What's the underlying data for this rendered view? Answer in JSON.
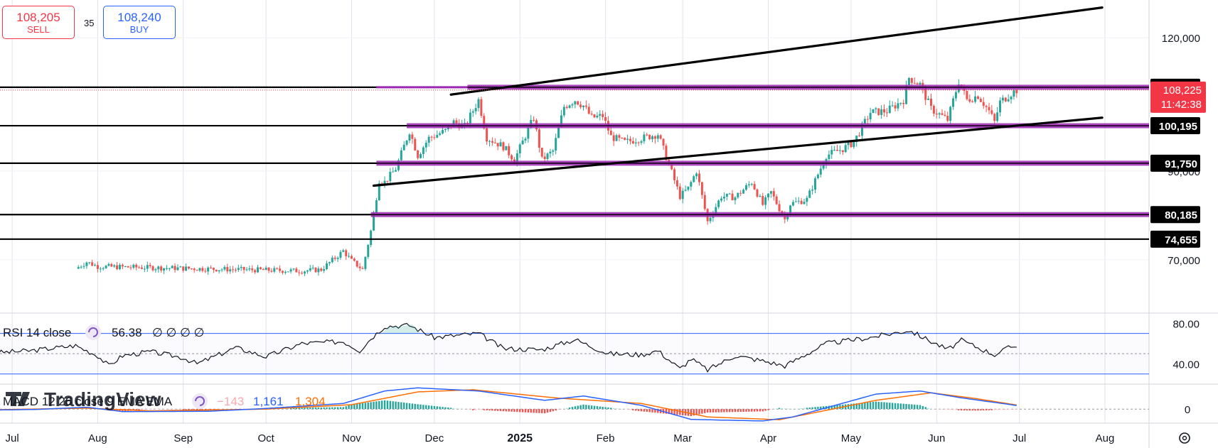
{
  "trade": {
    "sell_price": "108,205",
    "sell_label": "SELL",
    "spread": "35",
    "buy_price": "108,240",
    "buy_label": "BUY"
  },
  "indicators": {
    "rsi": {
      "label": "RSI 14 close",
      "value": "56.38",
      "placeholders": "∅ ∅ ∅ ∅",
      "levels": [
        70,
        30
      ],
      "axis_labels": [
        "80.00",
        "40.00"
      ]
    },
    "macd": {
      "label": "MACD 12 26 close 9 EMA EMA",
      "hist": "−143",
      "macd": "1,161",
      "signal": "1,304",
      "axis_label": "0"
    },
    "watermark": "TradingView"
  },
  "colors": {
    "up": "#26a69a",
    "down": "#ef5350",
    "level_line": "#9c27b0",
    "trend_line": "#000000",
    "rsi_band": "#2962ff",
    "macd_line": "#2962ff",
    "signal_line": "#ff6d00",
    "price_tag": "#f23645"
  },
  "icons": {
    "indicator_toggle": "refresh-cycle-icon",
    "settings": "gear-icon"
  },
  "chart_data": {
    "type": "candlestick",
    "instrument_price_axis": {
      "ylim": [
        58000,
        128500
      ],
      "tick_labels": [
        "120,000",
        "90,000",
        "70,000"
      ],
      "ticks": [
        120000,
        90000,
        70000
      ]
    },
    "x_tick_labels": [
      "Jul",
      "Aug",
      "Sep",
      "Oct",
      "Nov",
      "Dec",
      "2025",
      "Feb",
      "Mar",
      "Apr",
      "May",
      "Jun",
      "Jul",
      "Aug"
    ],
    "x_tick_dates": [
      "2024-07-01",
      "2024-08-01",
      "2024-09-01",
      "2024-10-01",
      "2024-11-01",
      "2024-12-01",
      "2025-01-01",
      "2025-02-01",
      "2025-03-01",
      "2025-04-01",
      "2025-05-01",
      "2025-06-01",
      "2025-07-01",
      "2025-08-01"
    ],
    "horizontal_levels": [
      108855,
      100195,
      91750,
      80185,
      74655
    ],
    "level_labels": [
      "108,855",
      "100,195",
      "91,750",
      "80,185",
      "74,655"
    ],
    "current_price": {
      "value": 108225,
      "label": "108,225",
      "countdown": "11:42:38"
    },
    "trend_lines": [
      {
        "from": [
          "2024-12-07",
          107200
        ],
        "to": [
          "2025-07-31",
          126800
        ]
      },
      {
        "from": [
          "2024-11-09",
          86700
        ],
        "to": [
          "2025-07-31",
          102000
        ]
      }
    ],
    "price_path": [
      [
        "2024-07-24",
        68000
      ],
      [
        "2024-07-28",
        69500
      ],
      [
        "2024-08-01",
        68500
      ],
      [
        "2024-10-14",
        67500
      ],
      [
        "2024-10-21",
        67800
      ],
      [
        "2024-10-29",
        72000
      ],
      [
        "2024-11-01",
        69800
      ],
      [
        "2024-11-05",
        67800
      ],
      [
        "2024-11-08",
        76500
      ],
      [
        "2024-11-11",
        88000
      ],
      [
        "2024-11-13",
        87500
      ],
      [
        "2024-11-17",
        90500
      ],
      [
        "2024-11-22",
        99000
      ],
      [
        "2024-11-25",
        93500
      ],
      [
        "2024-11-29",
        97400
      ],
      [
        "2024-12-05",
        99000
      ],
      [
        "2024-12-08",
        101000
      ],
      [
        "2024-12-12",
        100000
      ],
      [
        "2024-12-17",
        106000
      ],
      [
        "2024-12-20",
        97500
      ],
      [
        "2024-12-26",
        95500
      ],
      [
        "2024-12-30",
        92500
      ],
      [
        "2025-01-06",
        102000
      ],
      [
        "2025-01-09",
        92500
      ],
      [
        "2025-01-13",
        94500
      ],
      [
        "2025-01-17",
        104500
      ],
      [
        "2025-01-21",
        106000
      ],
      [
        "2025-01-24",
        104700
      ],
      [
        "2025-01-27",
        102000
      ],
      [
        "2025-01-31",
        102400
      ],
      [
        "2025-02-03",
        97700
      ],
      [
        "2025-02-08",
        96500
      ],
      [
        "2025-02-15",
        97500
      ],
      [
        "2025-02-20",
        98300
      ],
      [
        "2025-02-24",
        91500
      ],
      [
        "2025-02-28",
        84300
      ],
      [
        "2025-03-03",
        86100
      ],
      [
        "2025-03-06",
        90000
      ],
      [
        "2025-03-10",
        78600
      ],
      [
        "2025-03-15",
        84300
      ],
      [
        "2025-03-20",
        84100
      ],
      [
        "2025-03-26",
        87500
      ],
      [
        "2025-03-30",
        82400
      ],
      [
        "2025-04-02",
        85200
      ],
      [
        "2025-04-07",
        79100
      ],
      [
        "2025-04-09",
        82600
      ],
      [
        "2025-04-15",
        83600
      ],
      [
        "2025-04-22",
        93500
      ],
      [
        "2025-04-28",
        95000
      ],
      [
        "2025-05-02",
        96500
      ],
      [
        "2025-05-08",
        103200
      ],
      [
        "2025-05-14",
        103500
      ],
      [
        "2025-05-20",
        106000
      ],
      [
        "2025-05-22",
        111000
      ],
      [
        "2025-05-26",
        109500
      ],
      [
        "2025-05-30",
        104000
      ],
      [
        "2025-06-05",
        101500
      ],
      [
        "2025-06-09",
        110200
      ],
      [
        "2025-06-12",
        106000
      ],
      [
        "2025-06-16",
        107000
      ],
      [
        "2025-06-20",
        103500
      ],
      [
        "2025-06-22",
        101000
      ],
      [
        "2025-06-24",
        105500
      ],
      [
        "2025-06-28",
        107500
      ],
      [
        "2025-06-30",
        108225
      ]
    ],
    "rsi_path": [
      [
        "2024-06-25",
        51
      ],
      [
        "2024-07-08",
        53
      ],
      [
        "2024-07-24",
        58
      ],
      [
        "2024-08-01",
        48
      ],
      [
        "2024-08-05",
        38
      ],
      [
        "2024-08-10",
        48
      ],
      [
        "2024-08-20",
        52
      ],
      [
        "2024-09-01",
        46
      ],
      [
        "2024-09-06",
        40
      ],
      [
        "2024-09-20",
        56
      ],
      [
        "2024-10-01",
        47
      ],
      [
        "2024-10-14",
        60
      ],
      [
        "2024-10-29",
        62
      ],
      [
        "2024-11-04",
        53
      ],
      [
        "2024-11-08",
        65
      ],
      [
        "2024-11-13",
        77
      ],
      [
        "2024-11-22",
        78
      ],
      [
        "2024-12-01",
        66
      ],
      [
        "2024-12-17",
        70
      ],
      [
        "2024-12-26",
        55
      ],
      [
        "2025-01-09",
        54
      ],
      [
        "2025-01-21",
        64
      ],
      [
        "2025-02-02",
        50
      ],
      [
        "2025-02-14",
        49
      ],
      [
        "2025-02-20",
        53
      ],
      [
        "2025-02-28",
        35
      ],
      [
        "2025-03-04",
        45
      ],
      [
        "2025-03-10",
        34
      ],
      [
        "2025-03-20",
        48
      ],
      [
        "2025-03-30",
        43
      ],
      [
        "2025-04-07",
        38
      ],
      [
        "2025-04-22",
        60
      ],
      [
        "2025-05-08",
        66
      ],
      [
        "2025-05-22",
        73
      ],
      [
        "2025-06-05",
        54
      ],
      [
        "2025-06-10",
        63
      ],
      [
        "2025-06-22",
        49
      ],
      [
        "2025-06-28",
        57
      ],
      [
        "2025-06-30",
        56.38
      ]
    ],
    "rsi_ylim": [
      20,
      90
    ],
    "macd_path": {
      "macd": [
        [
          "2024-06-25",
          -300
        ],
        [
          "2024-07-10",
          -100
        ],
        [
          "2024-07-28",
          600
        ],
        [
          "2024-08-10",
          -800
        ],
        [
          "2024-09-10",
          -700
        ],
        [
          "2024-10-01",
          200
        ],
        [
          "2024-10-29",
          1800
        ],
        [
          "2024-11-13",
          5800
        ],
        [
          "2024-11-25",
          6800
        ],
        [
          "2024-12-17",
          5800
        ],
        [
          "2025-01-10",
          2800
        ],
        [
          "2025-01-24",
          4200
        ],
        [
          "2025-02-14",
          1200
        ],
        [
          "2025-03-04",
          -3300
        ],
        [
          "2025-03-30",
          -3800
        ],
        [
          "2025-04-10",
          -2500
        ],
        [
          "2025-05-10",
          4800
        ],
        [
          "2025-05-26",
          5800
        ],
        [
          "2025-06-10",
          3600
        ],
        [
          "2025-06-30",
          1161
        ]
      ],
      "signal": [
        [
          "2024-06-25",
          -200
        ],
        [
          "2024-07-28",
          300
        ],
        [
          "2024-08-20",
          -600
        ],
        [
          "2024-10-01",
          0
        ],
        [
          "2024-11-01",
          1400
        ],
        [
          "2024-11-25",
          5500
        ],
        [
          "2024-12-15",
          6200
        ],
        [
          "2025-01-15",
          3500
        ],
        [
          "2025-02-14",
          1800
        ],
        [
          "2025-03-10",
          -2500
        ],
        [
          "2025-04-05",
          -3400
        ],
        [
          "2025-05-10",
          2800
        ],
        [
          "2025-05-30",
          5200
        ],
        [
          "2025-06-15",
          3400
        ],
        [
          "2025-06-30",
          1304
        ]
      ]
    },
    "macd_ylim": [
      -4500,
      8000
    ],
    "grid": true
  }
}
